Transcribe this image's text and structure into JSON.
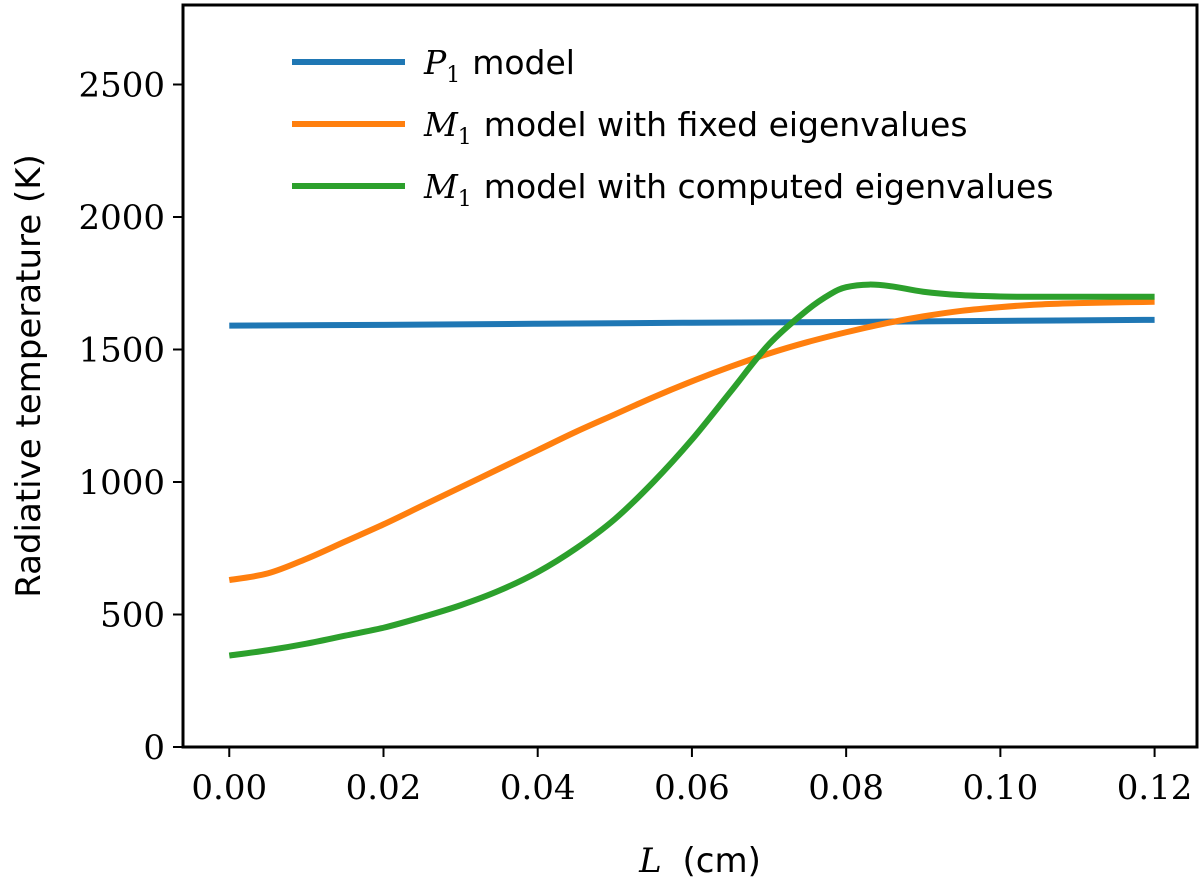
{
  "chart_data": {
    "type": "line",
    "title": "",
    "xlabel": "L (cm)",
    "xlabel_symbol": "L",
    "xlabel_unit": "(cm)",
    "ylabel": "Radiative temperature (K)",
    "xlim": [
      -0.006,
      0.1255
    ],
    "ylim": [
      0,
      2800
    ],
    "xticks": [
      0.0,
      0.02,
      0.04,
      0.06,
      0.08,
      0.1,
      0.12
    ],
    "xtick_labels": [
      "0.00",
      "0.02",
      "0.04",
      "0.06",
      "0.08",
      "0.10",
      "0.12"
    ],
    "yticks": [
      0,
      500,
      1000,
      1500,
      2000,
      2500
    ],
    "ytick_labels": [
      "0",
      "500",
      "1000",
      "1500",
      "2000",
      "2500"
    ],
    "grid": false,
    "legend_position": "top",
    "series": [
      {
        "name": "P1 model",
        "legend_symbol": "P",
        "legend_sub": "1",
        "legend_text": "model",
        "color": "#1f77b4",
        "x": [
          0.0,
          0.02,
          0.04,
          0.06,
          0.08,
          0.1,
          0.12
        ],
        "y": [
          1590,
          1593,
          1597,
          1601,
          1604,
          1608,
          1612
        ]
      },
      {
        "name": "M1 model with fixed eigenvalues",
        "legend_symbol": "M",
        "legend_sub": "1",
        "legend_text": "model with fixed eigenvalues",
        "color": "#ff7f0e",
        "x": [
          0.0,
          0.005,
          0.01,
          0.015,
          0.02,
          0.025,
          0.03,
          0.035,
          0.04,
          0.045,
          0.05,
          0.055,
          0.06,
          0.065,
          0.07,
          0.075,
          0.08,
          0.085,
          0.09,
          0.095,
          0.1,
          0.105,
          0.11,
          0.115,
          0.12
        ],
        "y": [
          630,
          655,
          710,
          775,
          840,
          910,
          980,
          1050,
          1120,
          1190,
          1255,
          1320,
          1380,
          1435,
          1485,
          1528,
          1565,
          1598,
          1625,
          1646,
          1660,
          1670,
          1675,
          1678,
          1680
        ]
      },
      {
        "name": "M1 model with computed eigenvalues",
        "legend_symbol": "M",
        "legend_sub": "1",
        "legend_text": "model with computed eigenvalues",
        "color": "#2ca02c",
        "x": [
          0.0,
          0.005,
          0.01,
          0.015,
          0.02,
          0.025,
          0.03,
          0.035,
          0.04,
          0.045,
          0.05,
          0.055,
          0.06,
          0.065,
          0.07,
          0.075,
          0.078,
          0.08,
          0.083,
          0.086,
          0.09,
          0.095,
          0.1,
          0.105,
          0.11,
          0.115,
          0.12
        ],
        "y": [
          345,
          365,
          390,
          420,
          450,
          490,
          535,
          590,
          660,
          750,
          860,
          1000,
          1160,
          1340,
          1520,
          1650,
          1710,
          1735,
          1745,
          1738,
          1718,
          1705,
          1700,
          1699,
          1699,
          1699,
          1699
        ]
      }
    ]
  }
}
